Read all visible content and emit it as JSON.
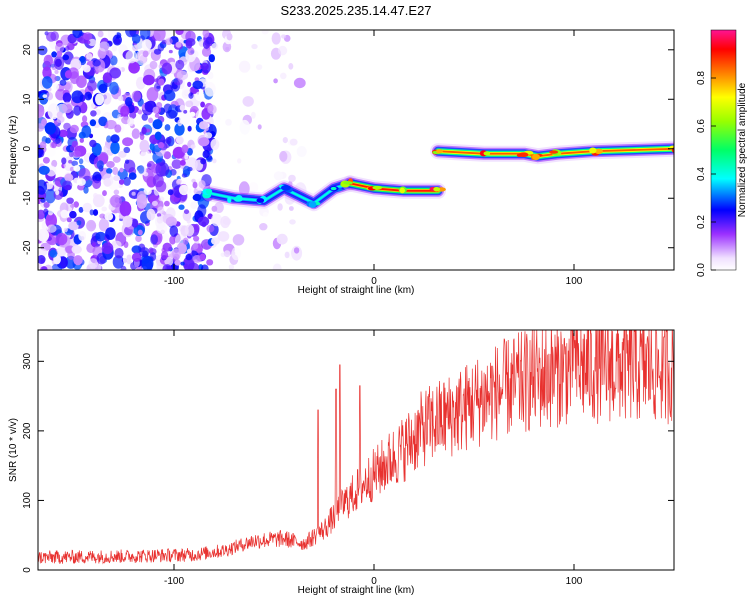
{
  "figure": {
    "title": "S233.2025.235.14.47.E27"
  },
  "chart_data": [
    {
      "type": "heatmap",
      "title": "S233.2025.235.14.47.E27",
      "xlabel": "Height of straight line (km)",
      "ylabel": "Frequency (Hz)",
      "xlim": [
        -168,
        150
      ],
      "ylim": [
        -24.5,
        24
      ],
      "xticks": [
        -100,
        0,
        100
      ],
      "yticks": [
        -20,
        -10,
        0,
        10,
        20
      ],
      "colorbar": {
        "label": "Normalized spectral amplitude",
        "range": [
          0,
          1
        ],
        "ticks": [
          0.0,
          0.2,
          0.4,
          0.6,
          0.8
        ]
      },
      "features": [
        {
          "name": "noise-region",
          "x_range": [
            -168,
            -80
          ],
          "freq_range": [
            -24.5,
            24
          ],
          "amplitude": 0.3
        },
        {
          "name": "weak-scatter",
          "x_range": [
            -80,
            -35
          ],
          "freq_range": [
            -24.5,
            24
          ],
          "amplitude": 0.1
        },
        {
          "name": "trace-segment-1",
          "points": [
            [
              -82,
              -9
            ],
            [
              -70,
              -10
            ],
            [
              -55,
              -10.5
            ],
            [
              -45,
              -8
            ],
            [
              -30,
              -11
            ],
            [
              -20,
              -8
            ],
            [
              -12,
              -7
            ]
          ],
          "amplitude": 0.4
        },
        {
          "name": "trace-segment-2",
          "points": [
            [
              -12,
              -7
            ],
            [
              0,
              -8
            ],
            [
              15,
              -8.5
            ],
            [
              32,
              -8.5
            ]
          ],
          "amplitude": 0.9
        },
        {
          "name": "trace-segment-3",
          "points": [
            [
              32,
              -0.5
            ],
            [
              55,
              -1
            ],
            [
              75,
              -1
            ],
            [
              82,
              -1.5
            ],
            [
              92,
              -1
            ],
            [
              110,
              -0.5
            ],
            [
              150,
              0
            ]
          ],
          "amplitude": 0.85
        }
      ]
    },
    {
      "type": "line",
      "xlabel": "Height of straight line (km)",
      "ylabel": "SNR (10 * v/v)",
      "xlim": [
        -168,
        150
      ],
      "ylim": [
        0,
        345
      ],
      "xticks": [
        -100,
        0,
        100
      ],
      "yticks": [
        0,
        100,
        200,
        300
      ],
      "series": [
        {
          "name": "SNR",
          "color": "#e8312f",
          "baseline_points": [
            [
              -168,
              18
            ],
            [
              -120,
              20
            ],
            [
              -90,
              22
            ],
            [
              -75,
              28
            ],
            [
              -60,
              42
            ],
            [
              -45,
              45
            ],
            [
              -35,
              38
            ],
            [
              -25,
              58
            ],
            [
              -15,
              95
            ],
            [
              -5,
              125
            ],
            [
              5,
              150
            ],
            [
              15,
              175
            ],
            [
              25,
              205
            ],
            [
              40,
              225
            ],
            [
              60,
              255
            ],
            [
              80,
              275
            ],
            [
              100,
              290
            ],
            [
              120,
              292
            ],
            [
              150,
              290
            ]
          ],
          "spikes": [
            [
              -19,
              260
            ],
            [
              -17,
              295
            ],
            [
              -7,
              265
            ],
            [
              -28,
              230
            ],
            [
              100,
              340
            ],
            [
              145,
              335
            ]
          ]
        }
      ]
    }
  ],
  "colors": {
    "trace": "#e8312f",
    "axis": "#000000",
    "background": "#ffffff"
  }
}
